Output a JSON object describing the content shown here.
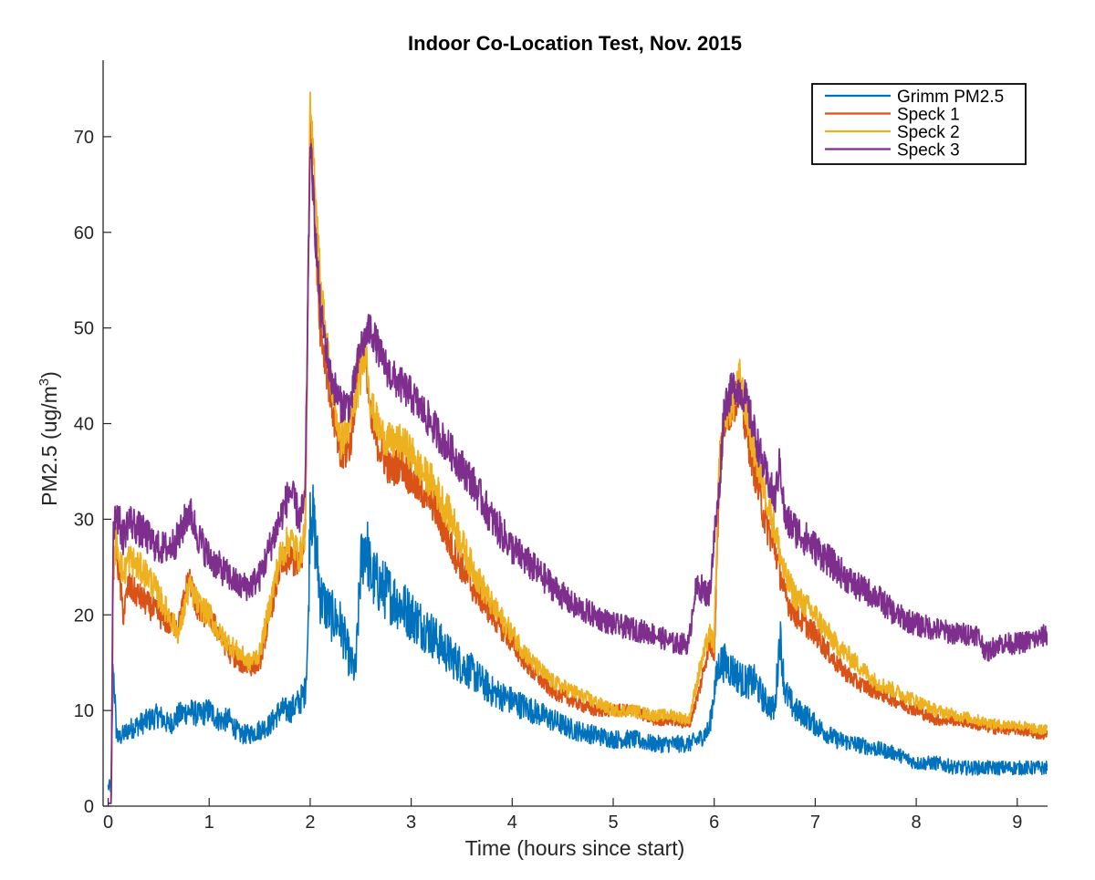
{
  "chart_data": {
    "type": "line",
    "title": "Indoor Co-Location Test, Nov. 2015",
    "xlabel": "Time (hours since start)",
    "ylabel": {
      "text": "PM2.5 (ug/m",
      "sup": "3",
      "suffix": ")"
    },
    "xlim": [
      -0.05,
      9.3
    ],
    "ylim": [
      0,
      78
    ],
    "xticks": [
      0,
      1,
      2,
      3,
      4,
      5,
      6,
      7,
      8,
      9
    ],
    "yticks": [
      0,
      10,
      20,
      30,
      40,
      50,
      60,
      70
    ],
    "grid": false,
    "legend_position": "top-right",
    "series": [
      {
        "name": "Grimm PM2.5",
        "color": "#0072bd",
        "noise": 2.5,
        "x": [
          0,
          0.03,
          0.05,
          0.08,
          0.1,
          0.2,
          0.3,
          0.4,
          0.5,
          0.6,
          0.7,
          0.8,
          0.9,
          1.0,
          1.1,
          1.2,
          1.3,
          1.4,
          1.5,
          1.6,
          1.7,
          1.8,
          1.9,
          1.95,
          1.98,
          2.0,
          2.05,
          2.1,
          2.2,
          2.3,
          2.4,
          2.45,
          2.5,
          2.55,
          2.6,
          2.7,
          2.8,
          2.9,
          3.0,
          3.2,
          3.4,
          3.6,
          3.8,
          4.0,
          4.2,
          4.4,
          4.6,
          4.8,
          5.0,
          5.2,
          5.4,
          5.6,
          5.75,
          5.85,
          5.95,
          6.0,
          6.05,
          6.1,
          6.2,
          6.3,
          6.4,
          6.5,
          6.6,
          6.65,
          6.7,
          6.8,
          6.9,
          7.0,
          7.2,
          7.4,
          7.6,
          7.8,
          8.0,
          8.2,
          8.4,
          8.6,
          8.8,
          9.0,
          9.2,
          9.3
        ],
        "values": [
          2,
          2,
          15,
          8,
          7,
          8,
          8.5,
          9,
          9.5,
          8.5,
          9.5,
          10,
          9.5,
          10,
          9,
          9,
          7.5,
          7.5,
          8,
          8.5,
          10,
          10,
          11,
          12,
          18,
          32,
          28,
          22,
          20,
          19,
          15,
          14,
          25,
          28,
          24,
          23,
          22,
          21,
          20,
          18,
          15.5,
          14,
          12,
          11,
          10,
          9,
          8,
          7.5,
          7,
          7,
          6.5,
          6.5,
          6.5,
          7,
          8,
          12,
          15,
          15,
          14,
          13,
          13,
          11,
          10,
          18,
          12,
          10,
          9.5,
          8.5,
          7,
          6.5,
          6,
          5.5,
          4.5,
          4.5,
          4,
          4,
          4,
          4,
          4,
          4
        ]
      },
      {
        "name": "Speck 1",
        "color": "#d95319",
        "noise": 1.2,
        "x": [
          0,
          0.03,
          0.05,
          0.08,
          0.15,
          0.2,
          0.3,
          0.4,
          0.5,
          0.6,
          0.7,
          0.8,
          0.9,
          1.0,
          1.1,
          1.2,
          1.3,
          1.4,
          1.5,
          1.6,
          1.7,
          1.8,
          1.9,
          1.95,
          2.0,
          2.05,
          2.1,
          2.2,
          2.3,
          2.4,
          2.5,
          2.55,
          2.6,
          2.7,
          2.8,
          2.9,
          3.0,
          3.1,
          3.2,
          3.4,
          3.6,
          3.8,
          4.0,
          4.2,
          4.4,
          4.6,
          4.8,
          5.0,
          5.2,
          5.4,
          5.6,
          5.75,
          5.85,
          5.95,
          6.0,
          6.05,
          6.1,
          6.2,
          6.25,
          6.3,
          6.4,
          6.5,
          6.6,
          6.7,
          6.8,
          7.0,
          7.2,
          7.4,
          7.6,
          7.8,
          8.0,
          8.2,
          8.4,
          8.6,
          8.8,
          9.0,
          9.2,
          9.3
        ],
        "values": [
          0,
          0,
          25,
          27,
          20,
          23,
          22,
          21,
          20,
          19,
          19,
          24,
          20,
          20,
          18,
          16,
          15,
          14.5,
          15,
          20,
          25,
          26,
          25,
          28,
          72,
          60,
          50,
          43,
          36,
          38,
          48,
          47,
          40,
          37,
          35,
          36,
          34,
          33,
          32,
          27,
          23,
          20,
          17,
          14,
          12,
          11,
          10,
          10,
          10,
          9,
          9,
          8.5,
          12,
          17,
          16,
          35,
          40,
          42,
          44,
          40,
          35,
          30,
          27,
          22,
          20,
          18,
          15,
          13,
          12,
          11,
          10,
          9,
          9,
          8.5,
          8,
          8,
          7.5,
          7.5
        ]
      },
      {
        "name": "Speck 2",
        "color": "#edb120",
        "noise": 1.2,
        "x": [
          0,
          0.03,
          0.05,
          0.08,
          0.15,
          0.2,
          0.3,
          0.4,
          0.5,
          0.6,
          0.7,
          0.8,
          0.9,
          1.0,
          1.1,
          1.2,
          1.3,
          1.4,
          1.5,
          1.6,
          1.7,
          1.8,
          1.9,
          1.95,
          2.0,
          2.05,
          2.1,
          2.2,
          2.3,
          2.4,
          2.5,
          2.55,
          2.6,
          2.7,
          2.8,
          2.9,
          3.0,
          3.1,
          3.2,
          3.4,
          3.6,
          3.8,
          4.0,
          4.2,
          4.4,
          4.6,
          4.8,
          5.0,
          5.2,
          5.4,
          5.6,
          5.75,
          5.85,
          5.95,
          6.0,
          6.05,
          6.1,
          6.2,
          6.25,
          6.3,
          6.4,
          6.5,
          6.6,
          6.7,
          6.8,
          7.0,
          7.2,
          7.4,
          7.6,
          7.8,
          8.0,
          8.2,
          8.4,
          8.6,
          8.8,
          9.0,
          9.2,
          9.3
        ],
        "values": [
          0,
          0,
          25,
          28,
          24,
          26,
          25,
          24,
          22,
          20,
          18,
          23,
          21,
          20,
          18,
          17,
          16,
          15,
          16,
          21,
          26,
          28,
          26,
          29,
          73,
          65,
          55,
          45,
          38,
          40,
          45,
          48,
          42,
          39,
          38,
          38,
          37,
          35,
          34,
          30,
          25,
          21,
          18,
          15,
          13,
          12,
          11,
          10,
          10,
          9.5,
          9.5,
          9,
          14,
          18,
          17,
          36,
          41,
          42,
          45,
          42,
          37,
          33,
          29,
          24,
          22,
          20,
          17,
          15,
          13,
          12,
          11,
          10,
          9.5,
          9,
          8.5,
          8.5,
          8,
          8
        ]
      },
      {
        "name": "Speck 3",
        "color": "#7e2f8e",
        "noise": 1.2,
        "x": [
          0,
          0.03,
          0.05,
          0.08,
          0.15,
          0.2,
          0.3,
          0.4,
          0.5,
          0.6,
          0.7,
          0.8,
          0.9,
          1.0,
          1.1,
          1.2,
          1.3,
          1.4,
          1.5,
          1.6,
          1.7,
          1.8,
          1.9,
          1.95,
          2.0,
          2.05,
          2.1,
          2.2,
          2.3,
          2.4,
          2.5,
          2.6,
          2.7,
          2.8,
          2.9,
          3.0,
          3.2,
          3.4,
          3.6,
          3.8,
          4.0,
          4.2,
          4.4,
          4.6,
          4.8,
          5.0,
          5.2,
          5.4,
          5.6,
          5.75,
          5.8,
          5.85,
          5.95,
          6.0,
          6.05,
          6.1,
          6.2,
          6.3,
          6.4,
          6.5,
          6.6,
          6.65,
          6.7,
          6.8,
          7.0,
          7.2,
          7.4,
          7.6,
          7.8,
          8.0,
          8.2,
          8.4,
          8.6,
          8.7,
          8.8,
          9.0,
          9.2,
          9.3
        ],
        "values": [
          0,
          0,
          29,
          31,
          28,
          30,
          29,
          28,
          27,
          27,
          28,
          31,
          28,
          26,
          25,
          24,
          23,
          23,
          24,
          27,
          30,
          33,
          30,
          32,
          70,
          60,
          52,
          45,
          42,
          42,
          48,
          50,
          47,
          45,
          44,
          43,
          40,
          37,
          34,
          30,
          27,
          25,
          23,
          21,
          20,
          19,
          18.5,
          18,
          17,
          17,
          22,
          23,
          22,
          28,
          33,
          42,
          44,
          43,
          39,
          35,
          32,
          36,
          30,
          29,
          27,
          25,
          23,
          22,
          20,
          19,
          18.5,
          18,
          18,
          16,
          17,
          17,
          17.5,
          18
        ]
      }
    ]
  }
}
